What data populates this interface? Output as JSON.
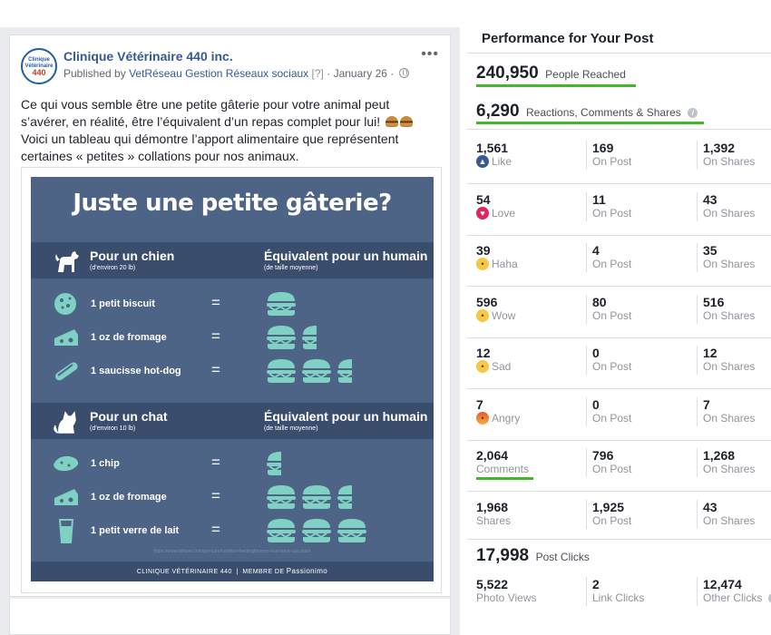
{
  "post": {
    "page_name": "Clinique Vétérinaire 440 inc.",
    "published_by_prefix": "Published by",
    "publisher": "VetRéseau Gestion Réseaux sociaux",
    "publisher_tag": "[?]",
    "date": "January 26",
    "separator": "·",
    "avatar_top": "Clinique",
    "avatar_mid": "Vétérinaire",
    "avatar_num": "440",
    "text": "Ce qui vous semble être une petite gâterie pour votre animal peut s’avérer, en réalité, être l’équivalent d’un repas complet pour lui!",
    "text2": "Voici un tableau qui démontre l’apport alimentaire que représentent certaines « petites » collations pour nos animaux.",
    "more_icon": "more-dots-icon"
  },
  "infographic": {
    "title": "Juste une petite gâterie?",
    "dog_section": {
      "animal": "Pour un chien",
      "animal_sub": "(d’environ 20 lb)",
      "equivalent": "Équivalent pour un humain",
      "equivalent_sub": "(de taille moyenne)",
      "rows": [
        {
          "label": "1 petit biscuit",
          "eq": "=",
          "burgers": 1,
          "partial": 0
        },
        {
          "label": "1 oz de fromage",
          "eq": "=",
          "burgers": 1,
          "partial": 0.5
        },
        {
          "label": "1 saucisse hot-dog",
          "eq": "=",
          "burgers": 2,
          "partial": 0.5
        }
      ]
    },
    "cat_section": {
      "animal": "Pour un chat",
      "animal_sub": "(d’environ 10 lb)",
      "equivalent": "Équivalent pour un humain",
      "equivalent_sub": "(de taille moyenne)",
      "rows": [
        {
          "label": "1 chip",
          "eq": "=",
          "burgers": 0,
          "partial": 0.5
        },
        {
          "label": "1 oz de fromage",
          "eq": "=",
          "burgers": 2,
          "partial": 0.5
        },
        {
          "label": "1 petit verre de lait",
          "eq": "=",
          "burgers": 3,
          "partial": 0
        }
      ]
    },
    "url": "https://www.hillspet.com/pet-care/nutrition-feeding/human-food-treat-calculator",
    "footer_left": "CLINIQUE VÉTÉRINAIRE 440",
    "footer_sep": "|",
    "footer_mid": "MEMBRE DE",
    "footer_brand": "Passionimo"
  },
  "performance": {
    "title": "Performance for Your Post",
    "reached": {
      "value": "240,950",
      "label": "People Reached"
    },
    "reactions": {
      "value": "6,290",
      "label": "Reactions, Comments & Shares"
    },
    "rows": [
      {
        "total": "1,561",
        "type": "Like",
        "icon": "like-icon",
        "on_post": "169",
        "on_shares": "1,392"
      },
      {
        "total": "54",
        "type": "Love",
        "icon": "love-icon",
        "on_post": "11",
        "on_shares": "43"
      },
      {
        "total": "39",
        "type": "Haha",
        "icon": "haha-icon",
        "on_post": "4",
        "on_shares": "35"
      },
      {
        "total": "596",
        "type": "Wow",
        "icon": "wow-icon",
        "on_post": "80",
        "on_shares": "516"
      },
      {
        "total": "12",
        "type": "Sad",
        "icon": "sad-icon",
        "on_post": "0",
        "on_shares": "12"
      },
      {
        "total": "7",
        "type": "Angry",
        "icon": "angry-icon",
        "on_post": "0",
        "on_shares": "7"
      },
      {
        "total": "2,064",
        "type": "Comments",
        "icon": "",
        "on_post": "796",
        "on_shares": "1,268"
      },
      {
        "total": "1,968",
        "type": "Shares",
        "icon": "",
        "on_post": "1,925",
        "on_shares": "43"
      }
    ],
    "on_post_label": "On Post",
    "on_shares_label": "On Shares",
    "clicks": {
      "value": "17,998",
      "label": "Post Clicks"
    },
    "click_breakdown": [
      {
        "value": "5,522",
        "label": "Photo Views"
      },
      {
        "value": "2",
        "label": "Link Clicks"
      },
      {
        "value": "12,474",
        "label": "Other Clicks"
      }
    ]
  },
  "colors": {
    "link": "#365899",
    "accent_green": "#42b72a",
    "infographic_bg": "#4d6486",
    "icon_teal": "#7fd1c4"
  }
}
